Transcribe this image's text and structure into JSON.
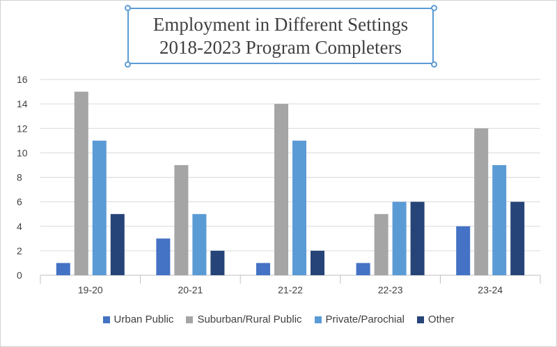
{
  "chart_data": {
    "type": "bar",
    "title": "Employment in Different Settings",
    "subtitle": "2018-2023 Program Completers",
    "categories": [
      "19-20",
      "20-21",
      "21-22",
      "22-23",
      "23-24"
    ],
    "series": [
      {
        "name": "Urban Public",
        "color": "#4472c4",
        "values": [
          1,
          3,
          1,
          1,
          4
        ]
      },
      {
        "name": "Suburban/Rural Public",
        "color": "#a5a5a5",
        "values": [
          15,
          9,
          14,
          5,
          12
        ]
      },
      {
        "name": "Private/Parochial",
        "color": "#5b9bd5",
        "values": [
          11,
          5,
          11,
          6,
          9
        ]
      },
      {
        "name": "Other",
        "color": "#264478",
        "values": [
          5,
          2,
          2,
          6,
          6
        ]
      }
    ],
    "yticks": [
      "0",
      "2",
      "4",
      "6",
      "8",
      "10",
      "12",
      "14",
      "16"
    ],
    "ylim": [
      0,
      16
    ],
    "grid": true,
    "legend_position": "bottom"
  }
}
